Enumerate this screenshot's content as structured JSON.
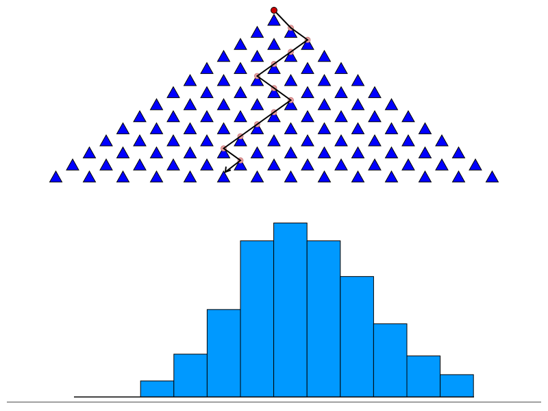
{
  "galton_board": {
    "rows": 12,
    "peg_color": "#0000ff",
    "peg_outline": "#000000",
    "ball_color": "#cc0000",
    "trail_color": "#e8a0a0",
    "path_color": "#000000",
    "ball_path": [
      "R",
      "R",
      "L",
      "L",
      "L",
      "R",
      "R",
      "L",
      "L",
      "L",
      "L",
      "R"
    ]
  },
  "histogram": {
    "bar_color": "#0099ff",
    "bar_outline": "#000000",
    "bins": 13,
    "values": [
      0,
      0,
      1.8,
      4.8,
      9.8,
      17.5,
      19.5,
      17.5,
      13.5,
      8.2,
      4.6,
      2.5,
      0
    ],
    "ylim": [
      0,
      20
    ]
  },
  "baseline_color": "#808080"
}
